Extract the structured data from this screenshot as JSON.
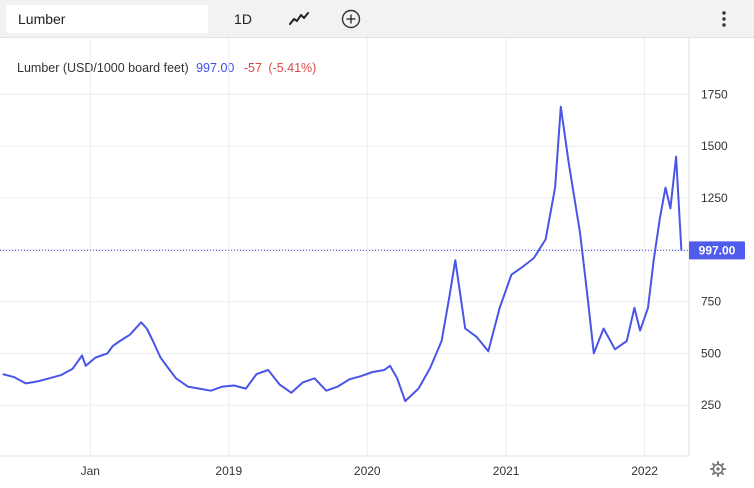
{
  "toolbar": {
    "symbol_input_value": "Lumber",
    "interval_label": "1D",
    "chart_type_icon": "line-chart-icon",
    "compare_icon": "plus-circle-icon",
    "menu_icon": "more-vertical-icon"
  },
  "legend": {
    "symbol_name": "Lumber (USD/1000 board feet)",
    "last_price": "997.00",
    "change": "-57",
    "change_percent": "(-5.41%)"
  },
  "price_tag": "997.00",
  "settings_icon": "gear-icon",
  "colors": {
    "line": "#4a55e8",
    "price_tag_bg": "#4f5bea",
    "negative": "#e04848",
    "grid": "#ececec"
  },
  "chart_data": {
    "type": "line",
    "title": "Lumber (USD/1000 board feet)",
    "xlabel": "",
    "ylabel": "",
    "x_tick_labels": [
      "Jan",
      "2019",
      "2020",
      "2021",
      "2022"
    ],
    "y_tick_labels": [
      "250",
      "500",
      "750",
      "1000",
      "1250",
      "1500",
      "1750"
    ],
    "ylim": [
      0,
      2000
    ],
    "grid": true,
    "current_value": 997,
    "series": [
      {
        "x": [
          "2017-05-15",
          "2017-06-15",
          "2017-07-15",
          "2017-08-15",
          "2017-09-15",
          "2017-10-15",
          "2017-11-15",
          "2017-12-10",
          "2017-12-20",
          "2018-01-15",
          "2018-02-15",
          "2018-03-01",
          "2018-03-20",
          "2018-04-15",
          "2018-05-15",
          "2018-05-30",
          "2018-06-15",
          "2018-07-05",
          "2018-07-25",
          "2018-08-15",
          "2018-09-15",
          "2018-10-15",
          "2018-11-15",
          "2018-12-15",
          "2019-01-15",
          "2019-02-15",
          "2019-03-15",
          "2019-04-15",
          "2019-05-15",
          "2019-06-15",
          "2019-07-15",
          "2019-08-15",
          "2019-09-15",
          "2019-10-15",
          "2019-11-15",
          "2019-12-15",
          "2020-01-15",
          "2020-02-15",
          "2020-03-01",
          "2020-03-20",
          "2020-04-10",
          "2020-05-15",
          "2020-06-15",
          "2020-07-15",
          "2020-08-05",
          "2020-08-20",
          "2020-09-15",
          "2020-10-15",
          "2020-11-15",
          "2020-12-15",
          "2021-01-15",
          "2021-02-15",
          "2021-03-15",
          "2021-04-15",
          "2021-05-10",
          "2021-05-25",
          "2021-06-15",
          "2021-07-15",
          "2021-08-05",
          "2021-08-20",
          "2021-09-15",
          "2021-10-15",
          "2021-11-15",
          "2021-12-05",
          "2021-12-20",
          "2022-01-10",
          "2022-01-25",
          "2022-02-10",
          "2022-02-25",
          "2022-03-10",
          "2022-03-25",
          "2022-04-08"
        ],
        "y": [
          400,
          385,
          355,
          365,
          380,
          395,
          425,
          490,
          440,
          480,
          500,
          535,
          560,
          590,
          650,
          620,
          560,
          480,
          430,
          380,
          340,
          330,
          320,
          340,
          345,
          330,
          400,
          420,
          350,
          310,
          360,
          380,
          320,
          340,
          375,
          390,
          410,
          420,
          440,
          380,
          270,
          330,
          430,
          560,
          780,
          950,
          620,
          580,
          510,
          720,
          880,
          920,
          960,
          1050,
          1300,
          1690,
          1420,
          1080,
          750,
          500,
          620,
          520,
          560,
          720,
          610,
          720,
          950,
          1150,
          1300,
          1200,
          1450,
          997
        ]
      }
    ]
  }
}
